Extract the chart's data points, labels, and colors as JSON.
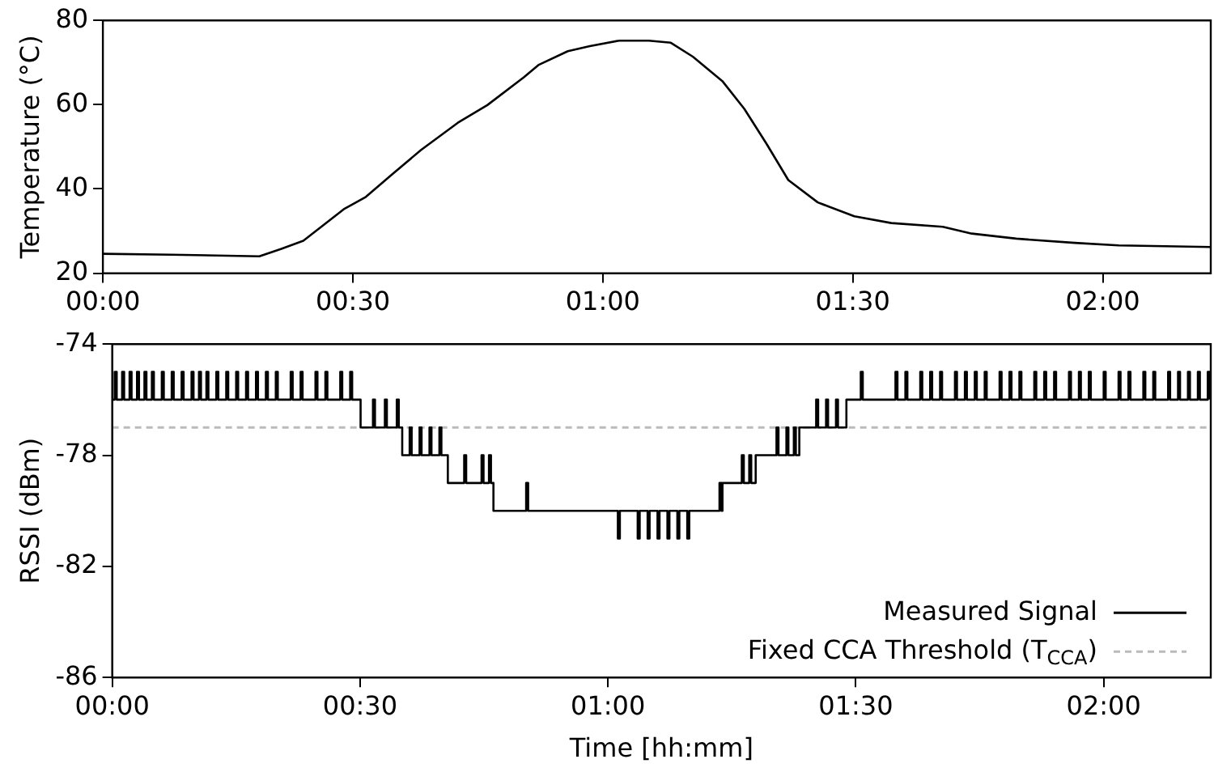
{
  "chart_data": [
    {
      "type": "line",
      "ylabel": "Temperature (°C)",
      "xlim": [
        0,
        2.216
      ],
      "xticks": [
        {
          "value": 0,
          "label": "00:00"
        },
        {
          "value": 0.5,
          "label": "00:30"
        },
        {
          "value": 1,
          "label": "01:00"
        },
        {
          "value": 1.5,
          "label": "01:30"
        },
        {
          "value": 2,
          "label": "02:00"
        }
      ],
      "ylim": [
        20,
        80
      ],
      "yticks": [
        20,
        40,
        60,
        80
      ],
      "grid": false,
      "series": [
        {
          "color": "#000000",
          "x": [
            0,
            0.137,
            0.313,
            0.357,
            0.401,
            0.482,
            0.526,
            0.578,
            0.636,
            0.71,
            0.769,
            0.842,
            0.871,
            0.93,
            0.974,
            1.033,
            1.092,
            1.136,
            1.18,
            1.239,
            1.283,
            1.327,
            1.371,
            1.43,
            1.503,
            1.577,
            1.68,
            1.738,
            1.827,
            1.944,
            2.032,
            2.216
          ],
          "values": [
            24.6,
            24.4,
            24,
            25.8,
            27.7,
            35.2,
            38.1,
            43.4,
            49.2,
            55.7,
            59.9,
            66.5,
            69.4,
            72.7,
            73.9,
            75.2,
            75.2,
            74.7,
            71.4,
            65.6,
            59,
            50.8,
            42.1,
            36.8,
            33.5,
            31.9,
            31,
            29.4,
            28.2,
            27.2,
            26.6,
            26.2
          ]
        }
      ]
    },
    {
      "type": "step",
      "ylabel": "RSSI (dBm)",
      "xlabel": "Time [hh:mm]",
      "xlim": [
        0,
        2.216
      ],
      "xticks": [
        {
          "value": 0,
          "label": "00:00"
        },
        {
          "value": 0.5,
          "label": "00:30"
        },
        {
          "value": 1,
          "label": "01:00"
        },
        {
          "value": 1.5,
          "label": "01:30"
        },
        {
          "value": 2,
          "label": "02:00"
        }
      ],
      "ylim": [
        -86,
        -74
      ],
      "yticks": [
        -86,
        -82,
        -78,
        -74
      ],
      "grid": false,
      "legend": "bottom right",
      "ref_lines": [
        {
          "axis": "y",
          "value": -77,
          "label": "Fixed CCA Threshold (T$_{CCA}$)",
          "color": "#bbbbbb",
          "line_style": "dashed"
        }
      ],
      "series": [
        {
          "name": "Measured Signal",
          "color": "#000000",
          "x": [
            0,
            0.005,
            0.009,
            0.02,
            0.024,
            0.035,
            0.039,
            0.05,
            0.054,
            0.065,
            0.069,
            0.08,
            0.084,
            0.1,
            0.104,
            0.12,
            0.124,
            0.14,
            0.144,
            0.16,
            0.164,
            0.175,
            0.179,
            0.19,
            0.194,
            0.21,
            0.214,
            0.23,
            0.234,
            0.25,
            0.254,
            0.27,
            0.274,
            0.29,
            0.294,
            0.31,
            0.314,
            0.33,
            0.334,
            0.36,
            0.364,
            0.38,
            0.384,
            0.41,
            0.414,
            0.43,
            0.434,
            0.46,
            0.464,
            0.48,
            0.484,
            0.501,
            0.526,
            0.53,
            0.55,
            0.554,
            0.574,
            0.578,
            0.585,
            0.6,
            0.604,
            0.62,
            0.624,
            0.64,
            0.644,
            0.66,
            0.664,
            0.677,
            0.71,
            0.714,
            0.745,
            0.749,
            0.76,
            0.764,
            0.769,
            0.835,
            0.839,
            1.02,
            1.024,
            1.06,
            1.064,
            1.08,
            1.084,
            1.1,
            1.104,
            1.12,
            1.124,
            1.14,
            1.144,
            1.16,
            1.164,
            1.225,
            1.229,
            1.231,
            1.27,
            1.274,
            1.285,
            1.289,
            1.298,
            1.34,
            1.344,
            1.36,
            1.364,
            1.375,
            1.379,
            1.386,
            1.42,
            1.424,
            1.44,
            1.444,
            1.46,
            1.464,
            1.481,
            1.51,
            1.514,
            1.58,
            1.584,
            1.6,
            1.604,
            1.63,
            1.634,
            1.65,
            1.654,
            1.67,
            1.674,
            1.7,
            1.704,
            1.72,
            1.724,
            1.74,
            1.744,
            1.76,
            1.764,
            1.79,
            1.794,
            1.81,
            1.814,
            1.83,
            1.834,
            1.86,
            1.864,
            1.88,
            1.884,
            1.9,
            1.904,
            1.93,
            1.934,
            1.95,
            1.954,
            1.97,
            1.974,
            2,
            2.004,
            2.03,
            2.034,
            2.05,
            2.054,
            2.08,
            2.084,
            2.1,
            2.104,
            2.13,
            2.134,
            2.15,
            2.154,
            2.17,
            2.174,
            2.19,
            2.194,
            2.21,
            2.214
          ],
          "values": [
            -76,
            -75,
            -76,
            -75,
            -76,
            -75,
            -76,
            -75,
            -76,
            -75,
            -76,
            -75,
            -76,
            -75,
            -76,
            -75,
            -76,
            -75,
            -76,
            -75,
            -76,
            -75,
            -76,
            -75,
            -76,
            -75,
            -76,
            -75,
            -76,
            -75,
            -76,
            -75,
            -76,
            -75,
            -76,
            -75,
            -76,
            -75,
            -76,
            -75,
            -76,
            -75,
            -76,
            -75,
            -76,
            -75,
            -76,
            -75,
            -76,
            -75,
            -76,
            -77,
            -76,
            -77,
            -76,
            -77,
            -76,
            -77,
            -78,
            -77,
            -78,
            -77,
            -78,
            -77,
            -78,
            -77,
            -78,
            -79,
            -78,
            -79,
            -78,
            -79,
            -78,
            -79,
            -80,
            -79,
            -80,
            -81,
            -80,
            -81,
            -80,
            -81,
            -80,
            -81,
            -80,
            -81,
            -80,
            -81,
            -80,
            -81,
            -80,
            -79,
            -80,
            -79,
            -78,
            -79,
            -78,
            -79,
            -78,
            -77,
            -78,
            -77,
            -78,
            -77,
            -78,
            -77,
            -76,
            -77,
            -76,
            -77,
            -76,
            -77,
            -76,
            -75,
            -76,
            -75,
            -76,
            -75,
            -76,
            -75,
            -76,
            -75,
            -76,
            -75,
            -76,
            -75,
            -76,
            -75,
            -76,
            -75,
            -76,
            -75,
            -76,
            -75,
            -76,
            -75,
            -76,
            -75,
            -76,
            -75,
            -76,
            -75,
            -76,
            -75,
            -76,
            -75,
            -76,
            -75,
            -76,
            -75,
            -76,
            -75,
            -76,
            -75,
            -76,
            -75,
            -76,
            -75,
            -76,
            -75,
            -76,
            -75,
            -76,
            -75,
            -76,
            -75,
            -76,
            -75,
            -76,
            -75,
            -76
          ]
        }
      ]
    }
  ]
}
